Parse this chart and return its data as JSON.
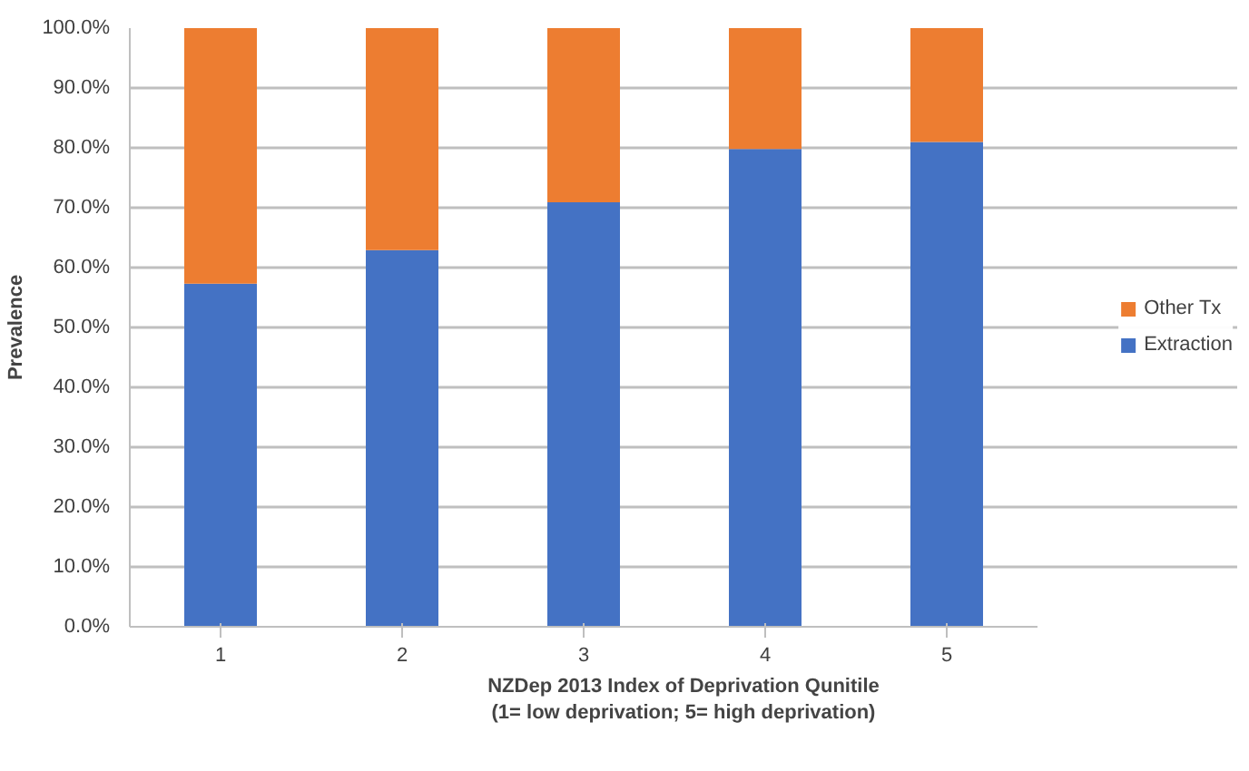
{
  "chart_data": {
    "type": "bar",
    "stacked": true,
    "xlabel": "NZDep 2013 Index of Deprivation Qunitile\n(1= low deprivation; 5= high deprivation)",
    "ylabel": "Prevalence",
    "categories": [
      "1",
      "2",
      "3",
      "4",
      "5"
    ],
    "series": [
      {
        "name": "Extraction",
        "color": "#4472c4",
        "values": [
          57.3,
          62.9,
          70.9,
          79.8,
          81.0
        ]
      },
      {
        "name": "Other Tx",
        "color": "#ed7d31",
        "values": [
          42.7,
          37.1,
          29.1,
          20.2,
          19.0
        ]
      }
    ],
    "ylim": [
      0,
      100
    ],
    "yticks": [
      {
        "value": 0,
        "label": "0.0%"
      },
      {
        "value": 10,
        "label": "10.0%"
      },
      {
        "value": 20,
        "label": "20.0%"
      },
      {
        "value": 30,
        "label": "30.0%"
      },
      {
        "value": 40,
        "label": "40.0%"
      },
      {
        "value": 50,
        "label": "50.0%"
      },
      {
        "value": 60,
        "label": "60.0%"
      },
      {
        "value": 70,
        "label": "70.0%"
      },
      {
        "value": 80,
        "label": "80.0%"
      },
      {
        "value": 90,
        "label": "90.0%"
      },
      {
        "value": 100,
        "label": "100.0%"
      }
    ],
    "grid": "y",
    "legend": "right"
  }
}
